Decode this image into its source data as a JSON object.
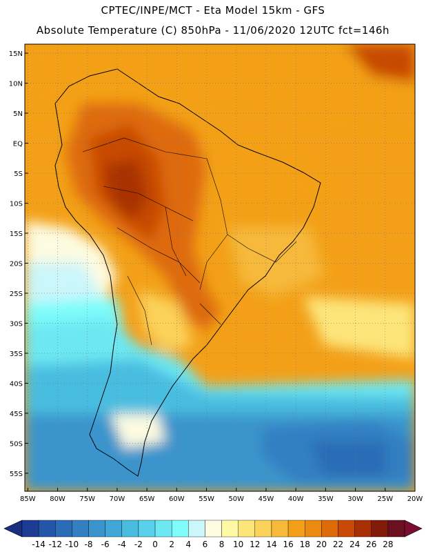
{
  "title_line1": "CPTEC/INPE/MCT -  Eta Model 15km - GFS",
  "title_line2": "Absolute Temperature (C) 850hPa - 11/06/2020 12UTC fct=146h",
  "lat_labels": [
    "15N",
    "10N",
    "5N",
    "EQ",
    "5S",
    "10S",
    "15S",
    "20S",
    "25S",
    "30S",
    "35S",
    "40S",
    "45S",
    "50S",
    "55S"
  ],
  "lat_values": [
    15,
    10,
    5,
    0,
    -5,
    -10,
    -15,
    -20,
    -25,
    -30,
    -35,
    -40,
    -45,
    -50,
    -55
  ],
  "lon_labels": [
    "85W",
    "80W",
    "75W",
    "70W",
    "65W",
    "60W",
    "55W",
    "50W",
    "45W",
    "40W",
    "35W",
    "30W",
    "25W",
    "20W"
  ],
  "lon_values": [
    -85,
    -80,
    -75,
    -70,
    -65,
    -60,
    -55,
    -50,
    -45,
    -40,
    -35,
    -30,
    -25,
    -20
  ],
  "map_extent": {
    "lon_min": -85.5,
    "lon_max": -20,
    "lat_min": -58,
    "lat_max": 16.5
  },
  "colorbar": {
    "labels": [
      "-14",
      "-12",
      "-10",
      "-8",
      "-6",
      "-4",
      "-2",
      "0",
      "2",
      "4",
      "6",
      "8",
      "10",
      "12",
      "14",
      "16",
      "18",
      "20",
      "22",
      "24",
      "26",
      "28"
    ],
    "colors": [
      "#1e3c94",
      "#2456a8",
      "#2a6cb6",
      "#327fc2",
      "#3b94cc",
      "#40a7d6",
      "#48bde0",
      "#5ad1ea",
      "#6de8f2",
      "#7ffcfc",
      "#cbf6fa",
      "#fdfbe0",
      "#fff8a4",
      "#fde57a",
      "#fbd25a",
      "#f6b93a",
      "#f3a018",
      "#ea8a10",
      "#de6a0a",
      "#c84a06",
      "#a83004",
      "#821c0a",
      "#6a1020"
    ],
    "low_end_color": "#1a2e80",
    "high_end_color": "#7a0e30"
  }
}
